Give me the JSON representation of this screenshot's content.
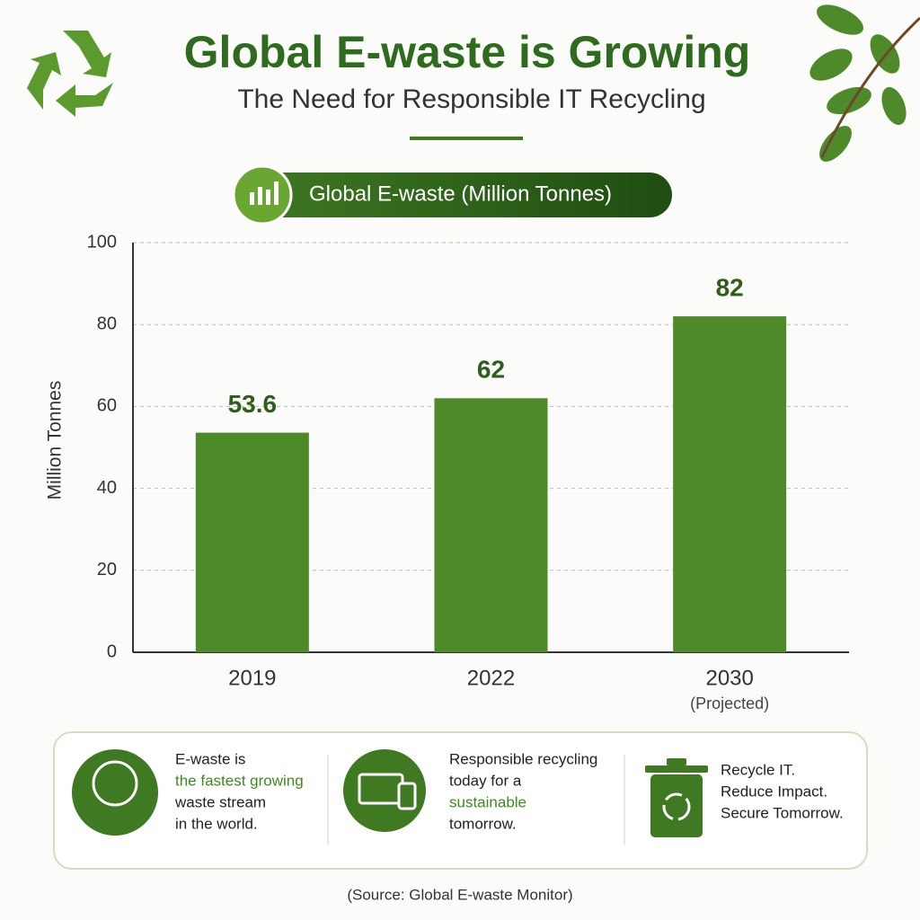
{
  "header": {
    "title": "Global E-waste is Growing",
    "subtitle": "The Need for Responsible IT Recycling"
  },
  "chart_data": {
    "type": "bar",
    "title": "Global E-waste (Million Tonnes)",
    "y_label": "Million Tonnes",
    "categories": [
      "2019",
      "2022",
      "2030"
    ],
    "category_notes": [
      null,
      null,
      "(Projected)"
    ],
    "values": [
      53.6,
      62,
      82
    ],
    "color": "#4f8a2a",
    "ylim": [
      0,
      100
    ],
    "yticks": [
      0,
      20,
      40,
      60,
      80,
      100
    ],
    "grid": true
  },
  "panel": {
    "items": [
      {
        "lines": [
          {
            "text": "E-waste is"
          },
          {
            "text": "the fastest growing",
            "emphasis": true
          },
          {
            "text": "waste stream"
          },
          {
            "text": "in the world."
          }
        ]
      },
      {
        "lines": [
          {
            "text": "Responsible recycling"
          },
          {
            "text": "today for a"
          },
          {
            "text": "sustainable",
            "emphasis": true
          },
          {
            "text": "tomorrow."
          }
        ]
      },
      {
        "lines": [
          {
            "text": "Recycle IT."
          },
          {
            "text": "Reduce Impact."
          },
          {
            "text": "Secure Tomorrow."
          }
        ]
      }
    ]
  },
  "source": "(Source: Global E-waste Monitor)"
}
